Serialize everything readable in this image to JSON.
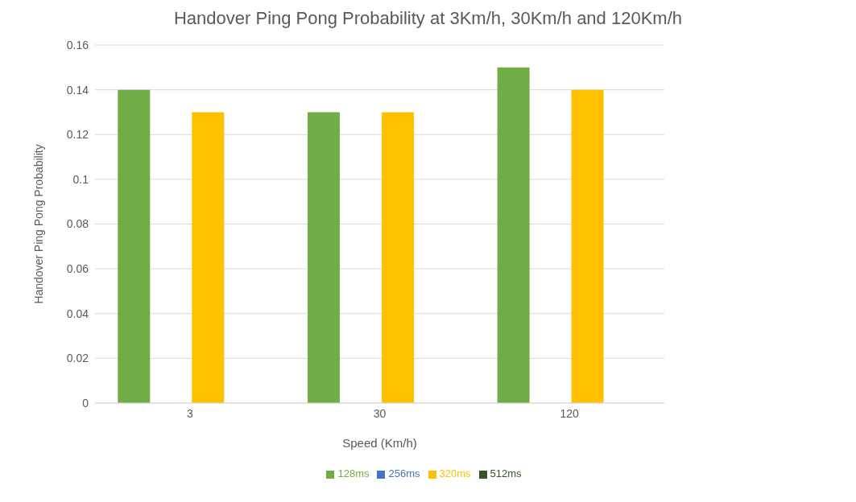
{
  "chart_data": {
    "type": "bar",
    "title": "Handover Ping Pong Probability at 3Km/h, 30Km/h and 120Km/h",
    "xlabel": "Speed (Km/h)",
    "ylabel": "Handover Ping Pong Probability",
    "categories": [
      "3",
      "30",
      "120"
    ],
    "series": [
      {
        "name": "128ms",
        "color": "#70ad47",
        "values": [
          0.14,
          0.13,
          0.15
        ]
      },
      {
        "name": "256ms",
        "color": "#4472c4",
        "values": [
          0,
          0,
          0
        ]
      },
      {
        "name": "320ms",
        "color": "#ffc000",
        "values": [
          0.13,
          0.13,
          0.14
        ]
      },
      {
        "name": "512ms",
        "color": "#375623",
        "values": [
          0,
          0,
          0
        ]
      }
    ],
    "ylim": [
      0,
      0.16
    ],
    "yticks": [
      0,
      0.02,
      0.04,
      0.06,
      0.08,
      0.1,
      0.12,
      0.14,
      0.16
    ],
    "grid": "y",
    "legend": "bottom"
  }
}
